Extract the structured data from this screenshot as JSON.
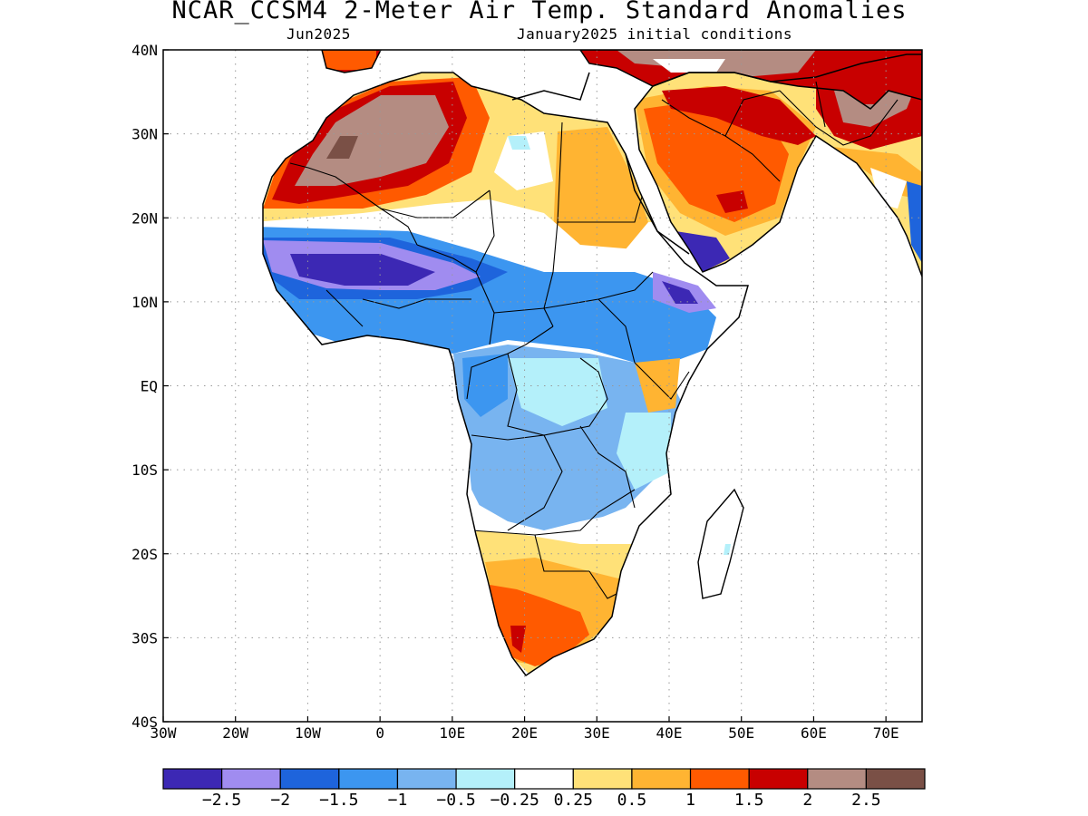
{
  "title": "NCAR_CCSM4 2-Meter Air Temp. Standard Anomalies",
  "subtitle_left": "Jun2025",
  "subtitle_right": "January2025 initial conditions",
  "map": {
    "lon_range": [
      -30,
      75
    ],
    "lat_range": [
      -40,
      40
    ],
    "grid": "dotted",
    "lat_labels": [
      "40N",
      "30N",
      "20N",
      "10N",
      "EQ",
      "10S",
      "20S",
      "30S",
      "40S"
    ],
    "lon_labels": [
      "30W",
      "20W",
      "10W",
      "0",
      "10E",
      "20E",
      "30E",
      "40E",
      "50E",
      "60E",
      "70E"
    ]
  },
  "colorbar": {
    "colors": [
      "#3c28b4",
      "#a08cf0",
      "#1e64dc",
      "#3c96f0",
      "#78b4f0",
      "#b4f0fa",
      "#ffffff",
      "#ffe178",
      "#ffb432",
      "#ff5a00",
      "#c80000",
      "#b48c82",
      "#7a5046"
    ],
    "labels": [
      "−2.5",
      "−2",
      "−1.5",
      "−1",
      "−0.5",
      "−0.25",
      "0.25",
      "0.5",
      "1",
      "1.5",
      "2",
      "2.5"
    ]
  },
  "colors": {
    "land_outline": "#000000",
    "grid": "#999999"
  }
}
